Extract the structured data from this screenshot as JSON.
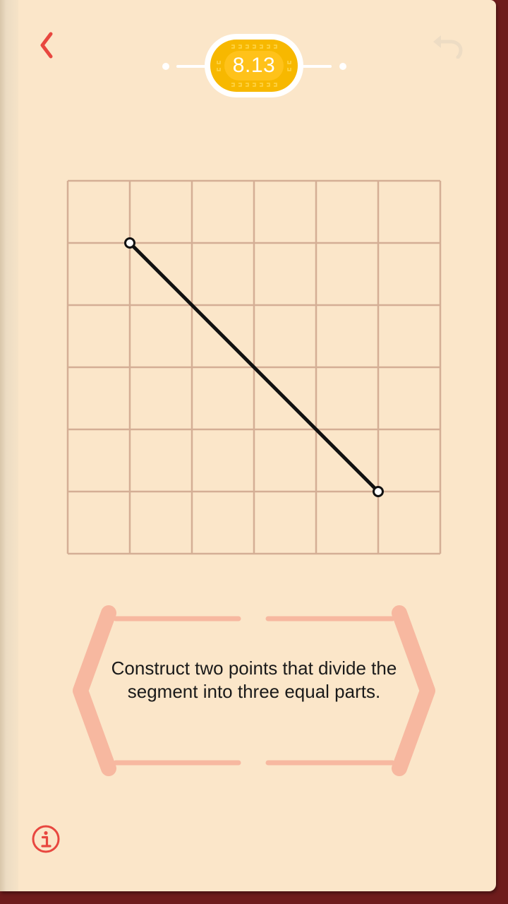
{
  "header": {
    "back_icon": "chevron-left-icon",
    "undo_icon": "undo-arrow-icon",
    "level": "8.13"
  },
  "colors": {
    "accent": "#e8473f",
    "gold": "#ffc21a",
    "page": "#fbe6c9",
    "grid": "#d4ae95",
    "frame": "#f7b8a0",
    "cover": "#6e1c1c"
  },
  "board": {
    "grid_columns": 6,
    "grid_rows": 6,
    "segment": {
      "start": {
        "col": 1,
        "row": 1
      },
      "end": {
        "col": 5,
        "row": 5
      }
    }
  },
  "task": {
    "text": "Construct two points that divide the segment into three equal parts."
  },
  "footer": {
    "info_icon": "info-icon"
  }
}
